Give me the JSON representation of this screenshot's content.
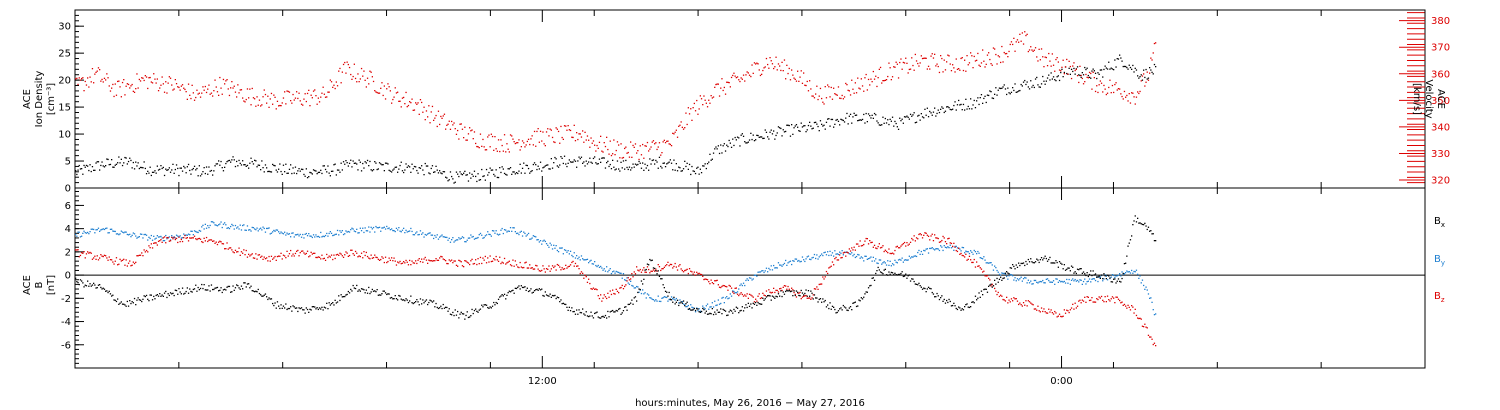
{
  "chart_data": [
    {
      "type": "scatter",
      "panel": "top",
      "ylabel_lines": [
        "ACE",
        "Ion Density",
        "[cm⁻³]"
      ],
      "y2label_lines": [
        "ACE",
        "Velocity",
        "[km/s]"
      ],
      "ylim": [
        0,
        33
      ],
      "y2lim": [
        317,
        384
      ],
      "yticks": [
        0,
        5,
        10,
        15,
        20,
        25,
        30
      ],
      "y2ticks": [
        320,
        330,
        340,
        350,
        360,
        370,
        380
      ],
      "xlim_hours": [
        0,
        39
      ],
      "grid": false,
      "series": [
        {
          "axis": "left",
          "color": "#000000",
          "x": [
            0.0,
            0.8,
            1.5,
            2.2,
            3.0,
            3.8,
            4.5,
            5.2,
            6.0,
            6.8,
            7.5,
            8.0,
            8.8,
            9.5,
            10.2,
            11.0,
            11.8,
            12.5,
            13.2,
            14.0,
            14.8,
            15.5,
            16.2,
            17.0,
            17.6,
            18.0,
            18.5,
            19.2,
            20.0,
            20.8,
            21.5,
            22.2,
            23.0,
            23.8,
            24.5,
            25.2,
            26.0,
            26.6,
            27.2,
            28.0,
            28.8,
            29.5,
            30.2,
            30.8,
            31.2
          ],
          "y": [
            3,
            4.5,
            5,
            3.5,
            3.5,
            3.2,
            5,
            4.5,
            3.5,
            3,
            3.5,
            4.5,
            4,
            4,
            3.5,
            2,
            2.5,
            3.5,
            4,
            5,
            5,
            4.5,
            4,
            5,
            4,
            3,
            7,
            9,
            10,
            11,
            11.5,
            13,
            13,
            12,
            14,
            15,
            16,
            18,
            19,
            20,
            22,
            21,
            24,
            21,
            22
          ]
        },
        {
          "axis": "right",
          "color": "#dd0000",
          "x": [
            0.0,
            0.6,
            1.2,
            2.0,
            2.8,
            3.5,
            4.2,
            5.0,
            5.8,
            6.5,
            7.2,
            7.8,
            8.5,
            9.2,
            9.8,
            10.5,
            11.2,
            11.8,
            12.5,
            13.2,
            14.0,
            14.6,
            15.0,
            15.6,
            16.0,
            16.6,
            17.2,
            17.8,
            18.5,
            19.2,
            20.0,
            20.8,
            21.5,
            22.2,
            23.0,
            23.5,
            24.0,
            24.5,
            25.0,
            25.6,
            26.2,
            26.8,
            27.4,
            28.0,
            28.5,
            29.0,
            29.6,
            30.2,
            30.6,
            31.0,
            31.2
          ],
          "y": [
            355,
            360,
            354,
            358,
            356,
            352,
            356,
            352,
            350,
            351,
            352,
            362,
            358,
            352,
            349,
            343,
            338,
            335,
            334,
            336,
            337,
            338,
            334,
            332,
            331,
            332,
            334,
            346,
            354,
            358,
            365,
            360,
            352,
            354,
            358,
            361,
            363,
            365,
            364,
            364,
            366,
            368,
            373,
            365,
            364,
            360,
            356,
            354,
            352,
            360,
            370
          ]
        }
      ]
    },
    {
      "type": "scatter",
      "panel": "bottom",
      "ylabel_lines": [
        "ACE",
        "B",
        "[nT]"
      ],
      "ylim": [
        -8,
        7.5
      ],
      "yticks": [
        -6,
        -4,
        -2,
        0,
        2,
        4,
        6
      ],
      "xlim_hours": [
        0,
        39
      ],
      "zero_line": true,
      "grid": false,
      "series": [
        {
          "name": "B",
          "subscript": "x",
          "color": "#000000",
          "x": [
            0.0,
            0.7,
            1.4,
            2.0,
            2.8,
            3.6,
            4.4,
            5.0,
            5.8,
            6.6,
            7.4,
            8.0,
            8.8,
            9.6,
            10.4,
            11.2,
            12.0,
            12.8,
            13.6,
            14.4,
            15.2,
            15.8,
            16.2,
            16.6,
            17.2,
            18.0,
            18.8,
            19.6,
            20.4,
            21.2,
            22.0,
            22.6,
            23.2,
            24.0,
            24.8,
            25.6,
            26.4,
            27.2,
            28.0,
            28.8,
            29.6,
            30.2,
            30.6,
            31.0,
            31.2
          ],
          "y": [
            -0.5,
            -1,
            -2.5,
            -2,
            -1.5,
            -1,
            -1.2,
            -0.8,
            -2.5,
            -3,
            -2.5,
            -1,
            -1.5,
            -2,
            -2.5,
            -3.5,
            -2.5,
            -1,
            -1.5,
            -3,
            -3.5,
            -3,
            -2,
            1.5,
            -2,
            -3,
            -3.2,
            -2.5,
            -1.5,
            -1.5,
            -3,
            -2.5,
            0.5,
            0,
            -1.5,
            -3,
            -1,
            1,
            1.5,
            0.5,
            0,
            -0.5,
            5,
            4,
            3
          ]
        },
        {
          "name": "B",
          "subscript": "y",
          "color": "#1e7fd0",
          "x": [
            0.0,
            0.8,
            1.6,
            2.4,
            3.2,
            4.0,
            4.6,
            5.4,
            6.2,
            7.0,
            7.8,
            8.6,
            9.4,
            10.2,
            11.0,
            11.8,
            12.6,
            13.4,
            14.2,
            15.0,
            15.8,
            16.2,
            16.6,
            17.2,
            18.0,
            18.8,
            19.6,
            20.4,
            21.2,
            22.0,
            22.8,
            23.6,
            24.4,
            25.2,
            26.0,
            26.8,
            27.6,
            28.4,
            29.2,
            30.0,
            30.6,
            31.0,
            31.2
          ],
          "y": [
            3.5,
            4,
            3.5,
            3.2,
            3.5,
            4.5,
            4.2,
            4,
            3.5,
            3.5,
            3.8,
            4,
            4,
            3.5,
            3,
            3.5,
            4,
            3,
            2,
            1,
            0,
            -1,
            -2,
            -2,
            -3,
            -2,
            0,
            1,
            1.5,
            2,
            1.5,
            1,
            2,
            2.5,
            2,
            0,
            -0.5,
            -0.5,
            -0.5,
            0,
            0.5,
            -1.5,
            -3.5
          ]
        },
        {
          "name": "B",
          "subscript": "z",
          "color": "#dd0000",
          "x": [
            0.0,
            0.8,
            1.6,
            2.4,
            3.2,
            4.0,
            4.8,
            5.6,
            6.4,
            7.2,
            8.0,
            8.8,
            9.6,
            10.4,
            11.2,
            12.0,
            12.8,
            13.6,
            14.4,
            15.2,
            15.8,
            16.2,
            16.6,
            17.2,
            18.0,
            18.8,
            19.6,
            20.4,
            21.2,
            22.0,
            22.8,
            23.6,
            24.4,
            25.2,
            26.0,
            26.8,
            27.6,
            28.4,
            29.2,
            30.0,
            30.6,
            31.0,
            31.2
          ],
          "y": [
            2,
            1.5,
            1,
            3,
            3.2,
            3,
            2,
            1.5,
            2,
            1.5,
            2,
            1.5,
            1,
            1.5,
            1,
            1.5,
            1,
            0.5,
            1,
            -2,
            -1,
            0.5,
            0.5,
            1,
            0,
            -1,
            -2,
            -1,
            -2,
            1.5,
            3,
            2,
            3.5,
            3,
            1,
            -2,
            -2.5,
            -3.5,
            -2,
            -2,
            -3,
            -5,
            -6
          ]
        }
      ]
    }
  ],
  "xaxis": {
    "xlim_hours": [
      0,
      39
    ],
    "ticks": [
      {
        "hour": 13.5,
        "label": "12:00"
      },
      {
        "hour": 28.5,
        "label": "0:00"
      }
    ],
    "xlabel": "hours:minutes, May 26, 2016 − May 27, 2016"
  }
}
